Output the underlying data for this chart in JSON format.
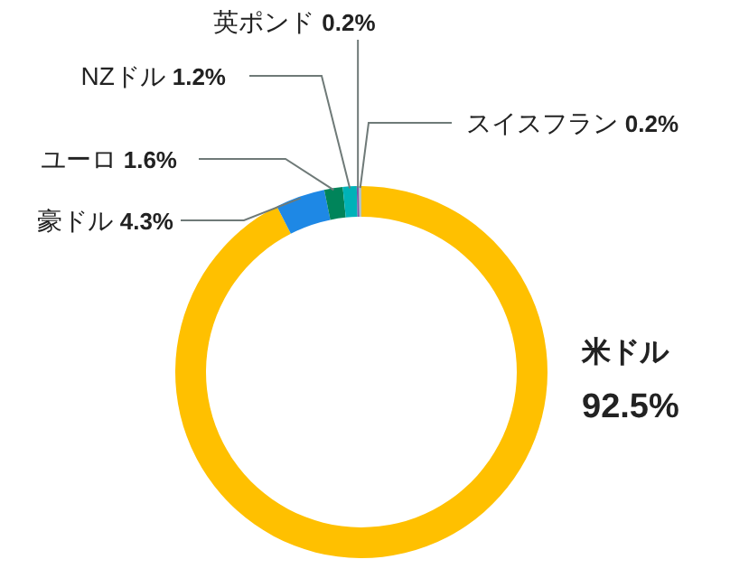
{
  "chart_data": {
    "type": "donut",
    "categories": [
      "米ドル",
      "豪ドル",
      "ユーロ",
      "NZドル",
      "英ポンド",
      "スイスフラン"
    ],
    "values": [
      92.5,
      4.3,
      1.6,
      1.2,
      0.2,
      0.2
    ],
    "colors": [
      "#ffc000",
      "#1e88e5",
      "#00845a",
      "#00b2b8",
      "#7b5aa6",
      "#b4c4c0"
    ],
    "value_labels": [
      "92.5%",
      "4.3%",
      "1.6%",
      "1.2%",
      "0.2%",
      "0.2%"
    ]
  }
}
